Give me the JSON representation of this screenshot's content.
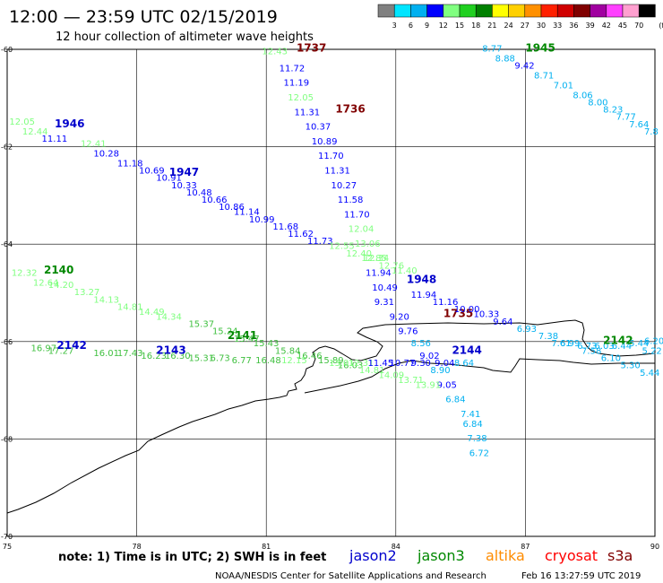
{
  "header": {
    "title": "12:00 — 23:59 UTC 02/15/2019",
    "subtitle": "12 hour collection of altimeter wave heights"
  },
  "colorbar": {
    "labels": [
      "3",
      "6",
      "9",
      "12",
      "15",
      "18",
      "21",
      "24",
      "27",
      "30",
      "33",
      "36",
      "39",
      "42",
      "45",
      "70"
    ],
    "unit": "(ft)",
    "colors": [
      "#808080",
      "#00e5ff",
      "#00b0f0",
      "#0000ff",
      "#80ff80",
      "#20d020",
      "#008000",
      "#ffff00",
      "#ffd000",
      "#ff9000",
      "#ff2000",
      "#d00000",
      "#800000",
      "#a000a0",
      "#ff40ff",
      "#ffa0d0",
      "#000000"
    ]
  },
  "map": {
    "lat_range": [
      -70,
      -60
    ],
    "lon_range": [
      75,
      90
    ],
    "lat_ticks": [
      "-60",
      "-62",
      "-64",
      "-66",
      "-68",
      "-70"
    ],
    "lon_ticks": [
      "75",
      "78",
      "81",
      "84",
      "87",
      "90"
    ]
  },
  "satellite_colors": {
    "jason2": "#0000cc",
    "jason3": "#008800",
    "altika": "#ff8c00",
    "cryosat": "#ff0000",
    "s3a": "#800000",
    "swh_blue": "#0000ff",
    "swh_cyan": "#00b0f0",
    "swh_green": "#40c040",
    "swh_lightgreen": "#80ff80"
  },
  "tracks": [
    {
      "time": "1737",
      "time_lon": 81.7,
      "time_lat": -60.05,
      "time_color": "s3a",
      "obs": [
        {
          "lon": 80.9,
          "lat": -60.1,
          "v": "12.43",
          "c": "swh_lightgreen"
        },
        {
          "lon": 81.3,
          "lat": -60.45,
          "v": "11.72",
          "c": "swh_blue"
        },
        {
          "lon": 81.4,
          "lat": -60.75,
          "v": "11.19",
          "c": "swh_blue"
        },
        {
          "lon": 81.5,
          "lat": -61.05,
          "v": "12.05",
          "c": "swh_lightgreen"
        },
        {
          "lon": 81.65,
          "lat": -61.35,
          "v": "11.31",
          "c": "swh_blue"
        },
        {
          "lon": 81.9,
          "lat": -61.65,
          "v": "10.37",
          "c": "swh_blue"
        },
        {
          "lon": 82.05,
          "lat": -61.95,
          "v": "10.89",
          "c": "swh_blue"
        },
        {
          "lon": 82.2,
          "lat": -62.25,
          "v": "11.70",
          "c": "swh_blue"
        },
        {
          "lon": 82.35,
          "lat": -62.55,
          "v": "11.31",
          "c": "swh_blue"
        },
        {
          "lon": 82.5,
          "lat": -62.85,
          "v": "10.27",
          "c": "swh_blue"
        },
        {
          "lon": 82.65,
          "lat": -63.15,
          "v": "11.58",
          "c": "swh_blue"
        },
        {
          "lon": 82.8,
          "lat": -63.45,
          "v": "11.70",
          "c": "swh_blue"
        },
        {
          "lon": 82.9,
          "lat": -63.75,
          "v": "12.04",
          "c": "swh_lightgreen"
        },
        {
          "lon": 83.05,
          "lat": -64.05,
          "v": "13.06",
          "c": "swh_lightgreen"
        },
        {
          "lon": 83.2,
          "lat": -64.35,
          "v": "12.85",
          "c": "swh_lightgreen"
        },
        {
          "lon": 83.3,
          "lat": -64.65,
          "v": "11.94",
          "c": "swh_blue"
        },
        {
          "lon": 83.45,
          "lat": -64.95,
          "v": "10.49",
          "c": "swh_blue"
        }
      ]
    },
    {
      "time": "1736",
      "time_lon": 82.6,
      "time_lat": -61.3,
      "time_color": "s3a",
      "obs": []
    },
    {
      "time": "1735",
      "time_lon": 85.1,
      "time_lat": -65.5,
      "time_color": "s3a",
      "obs": [
        {
          "lon": 83.5,
          "lat": -65.25,
          "v": "9.31",
          "c": "swh_blue"
        },
        {
          "lon": 83.85,
          "lat": -65.55,
          "v": "9.20",
          "c": "swh_blue"
        },
        {
          "lon": 84.05,
          "lat": -65.85,
          "v": "9.76",
          "c": "swh_blue"
        },
        {
          "lon": 84.35,
          "lat": -66.1,
          "v": "8.56",
          "c": "swh_cyan"
        },
        {
          "lon": 84.55,
          "lat": -66.35,
          "v": "9.02",
          "c": "swh_blue"
        },
        {
          "lon": 84.8,
          "lat": -66.65,
          "v": "8.90",
          "c": "swh_cyan"
        },
        {
          "lon": 84.95,
          "lat": -66.95,
          "v": "9.05",
          "c": "swh_blue"
        },
        {
          "lon": 85.15,
          "lat": -67.25,
          "v": "6.84",
          "c": "swh_cyan"
        },
        {
          "lon": 85.5,
          "lat": -67.55,
          "v": "7.41",
          "c": "swh_cyan"
        },
        {
          "lon": 85.55,
          "lat": -67.75,
          "v": "6.84",
          "c": "swh_cyan"
        },
        {
          "lon": 85.65,
          "lat": -68.05,
          "v": "7.38",
          "c": "swh_cyan"
        },
        {
          "lon": 85.7,
          "lat": -68.35,
          "v": "6.72",
          "c": "swh_cyan"
        }
      ]
    },
    {
      "time": "1945",
      "time_lon": 87.0,
      "time_lat": -60.05,
      "time_color": "jason3",
      "obs": [
        {
          "lon": 86.0,
          "lat": -60.05,
          "v": "8.77",
          "c": "swh_cyan"
        },
        {
          "lon": 86.3,
          "lat": -60.25,
          "v": "8.88",
          "c": "swh_cyan"
        },
        {
          "lon": 86.75,
          "lat": -60.4,
          "v": "9.42",
          "c": "swh_blue"
        },
        {
          "lon": 87.2,
          "lat": -60.6,
          "v": "8.71",
          "c": "swh_cyan"
        },
        {
          "lon": 87.65,
          "lat": -60.8,
          "v": "7.01",
          "c": "swh_cyan"
        },
        {
          "lon": 88.1,
          "lat": -61.0,
          "v": "8.06",
          "c": "swh_cyan"
        },
        {
          "lon": 88.45,
          "lat": -61.15,
          "v": "8.00",
          "c": "swh_cyan"
        },
        {
          "lon": 88.8,
          "lat": -61.3,
          "v": "8.23",
          "c": "swh_cyan"
        },
        {
          "lon": 89.1,
          "lat": -61.45,
          "v": "7.77",
          "c": "swh_cyan"
        },
        {
          "lon": 89.4,
          "lat": -61.6,
          "v": "7.64",
          "c": "swh_cyan"
        },
        {
          "lon": 89.75,
          "lat": -61.75,
          "v": "7.8",
          "c": "swh_cyan"
        }
      ]
    },
    {
      "time": "1946",
      "time_lon": 76.1,
      "time_lat": -61.6,
      "time_color": "jason2",
      "obs": [
        {
          "lon": 75.05,
          "lat": -61.55,
          "v": "12.05",
          "c": "swh_lightgreen"
        },
        {
          "lon": 75.35,
          "lat": -61.75,
          "v": "12.44",
          "c": "swh_lightgreen"
        },
        {
          "lon": 75.8,
          "lat": -61.9,
          "v": "11.11",
          "c": "swh_blue"
        },
        {
          "lon": 76.7,
          "lat": -62.0,
          "v": "12.41",
          "c": "swh_lightgreen"
        },
        {
          "lon": 77.0,
          "lat": -62.2,
          "v": "10.28",
          "c": "swh_blue"
        },
        {
          "lon": 77.55,
          "lat": -62.4,
          "v": "11.18",
          "c": "swh_blue"
        },
        {
          "lon": 78.05,
          "lat": -62.55,
          "v": "10.69",
          "c": "swh_blue"
        },
        {
          "lon": 78.45,
          "lat": -62.7,
          "v": "10.91",
          "c": "swh_blue"
        },
        {
          "lon": 78.8,
          "lat": -62.85,
          "v": "10.33",
          "c": "swh_blue"
        },
        {
          "lon": 79.15,
          "lat": -63.0,
          "v": "10.48",
          "c": "swh_blue"
        },
        {
          "lon": 79.5,
          "lat": -63.15,
          "v": "10.66",
          "c": "swh_blue"
        },
        {
          "lon": 79.9,
          "lat": -63.3,
          "v": "10.86",
          "c": "swh_blue"
        },
        {
          "lon": 80.25,
          "lat": -63.4,
          "v": "11.14",
          "c": "swh_blue"
        },
        {
          "lon": 80.6,
          "lat": -63.55,
          "v": "10.99",
          "c": "swh_blue"
        },
        {
          "lon": 81.15,
          "lat": -63.7,
          "v": "11.68",
          "c": "swh_blue"
        },
        {
          "lon": 81.5,
          "lat": -63.85,
          "v": "11.62",
          "c": "swh_blue"
        },
        {
          "lon": 81.95,
          "lat": -64.0,
          "v": "11.73",
          "c": "swh_blue"
        },
        {
          "lon": 82.45,
          "lat": -64.1,
          "v": "12.55",
          "c": "swh_lightgreen"
        },
        {
          "lon": 82.85,
          "lat": -64.25,
          "v": "12.40",
          "c": "swh_lightgreen"
        },
        {
          "lon": 83.25,
          "lat": -64.35,
          "v": "12.34",
          "c": "swh_lightgreen"
        },
        {
          "lon": 83.6,
          "lat": -64.5,
          "v": "12.76",
          "c": "swh_lightgreen"
        },
        {
          "lon": 83.9,
          "lat": -64.6,
          "v": "11.40",
          "c": "swh_lightgreen"
        }
      ]
    },
    {
      "time": "1947",
      "time_lon": 78.75,
      "time_lat": -62.6,
      "time_color": "jason2",
      "obs": []
    },
    {
      "time": "1948",
      "time_lon": 84.25,
      "time_lat": -64.8,
      "time_color": "jason2",
      "obs": [
        {
          "lon": 84.35,
          "lat": -65.1,
          "v": "11.94",
          "c": "swh_blue"
        },
        {
          "lon": 84.85,
          "lat": -65.25,
          "v": "11.16",
          "c": "swh_blue"
        },
        {
          "lon": 85.35,
          "lat": -65.4,
          "v": "10.00",
          "c": "swh_blue"
        },
        {
          "lon": 85.8,
          "lat": -65.5,
          "v": "10.33",
          "c": "swh_blue"
        },
        {
          "lon": 86.25,
          "lat": -65.65,
          "v": "9.64",
          "c": "swh_blue"
        },
        {
          "lon": 86.8,
          "lat": -65.8,
          "v": "6.93",
          "c": "swh_cyan"
        },
        {
          "lon": 87.3,
          "lat": -65.95,
          "v": "7.38",
          "c": "swh_cyan"
        },
        {
          "lon": 87.8,
          "lat": -66.1,
          "v": "6.99",
          "c": "swh_cyan"
        },
        {
          "lon": 88.3,
          "lat": -66.25,
          "v": "7.58",
          "c": "swh_cyan"
        },
        {
          "lon": 88.75,
          "lat": -66.4,
          "v": "6.10",
          "c": "swh_cyan"
        },
        {
          "lon": 89.2,
          "lat": -66.55,
          "v": "5.30",
          "c": "swh_cyan"
        },
        {
          "lon": 89.65,
          "lat": -66.7,
          "v": "5.44",
          "c": "swh_cyan"
        }
      ]
    },
    {
      "time": "2140",
      "time_lon": 75.85,
      "time_lat": -64.6,
      "time_color": "jason3",
      "obs": [
        {
          "lon": 75.1,
          "lat": -64.65,
          "v": "12.32",
          "c": "swh_lightgreen"
        },
        {
          "lon": 75.6,
          "lat": -64.85,
          "v": "12.64",
          "c": "swh_lightgreen"
        },
        {
          "lon": 75.95,
          "lat": -64.9,
          "v": "14.20",
          "c": "swh_lightgreen"
        },
        {
          "lon": 76.55,
          "lat": -65.05,
          "v": "13.27",
          "c": "swh_lightgreen"
        },
        {
          "lon": 77.0,
          "lat": -65.2,
          "v": "14.13",
          "c": "swh_lightgreen"
        },
        {
          "lon": 77.55,
          "lat": -65.35,
          "v": "14.81",
          "c": "swh_lightgreen"
        },
        {
          "lon": 78.05,
          "lat": -65.45,
          "v": "14.49",
          "c": "swh_lightgreen"
        },
        {
          "lon": 78.45,
          "lat": -65.55,
          "v": "14.34",
          "c": "swh_lightgreen"
        },
        {
          "lon": 79.2,
          "lat": -65.7,
          "v": "15.37",
          "c": "swh_green"
        },
        {
          "lon": 79.75,
          "lat": -65.85,
          "v": "15.24",
          "c": "swh_green"
        },
        {
          "lon": 80.25,
          "lat": -66.0,
          "v": "15.47",
          "c": "swh_green"
        },
        {
          "lon": 80.7,
          "lat": -66.1,
          "v": "15.43",
          "c": "swh_green"
        },
        {
          "lon": 81.2,
          "lat": -66.25,
          "v": "15.84",
          "c": "swh_green"
        },
        {
          "lon": 81.7,
          "lat": -66.35,
          "v": "16.46",
          "c": "swh_green"
        },
        {
          "lon": 82.2,
          "lat": -66.45,
          "v": "15.89",
          "c": "swh_green"
        },
        {
          "lon": 82.65,
          "lat": -66.55,
          "v": "16.03",
          "c": "swh_green"
        },
        {
          "lon": 83.15,
          "lat": -66.65,
          "v": "14.81",
          "c": "swh_lightgreen"
        },
        {
          "lon": 83.6,
          "lat": -66.75,
          "v": "14.09",
          "c": "swh_lightgreen"
        },
        {
          "lon": 84.05,
          "lat": -66.85,
          "v": "13.71",
          "c": "swh_lightgreen"
        },
        {
          "lon": 84.45,
          "lat": -66.95,
          "v": "13.91",
          "c": "swh_lightgreen"
        }
      ]
    },
    {
      "time": "2141",
      "time_lon": 80.1,
      "time_lat": -65.95,
      "time_color": "jason3",
      "obs": []
    },
    {
      "time": "2142",
      "time_lon": 76.15,
      "time_lat": -66.15,
      "time_color": "jason2",
      "obs": [
        {
          "lon": 75.55,
          "lat": -66.2,
          "v": "16.97",
          "c": "swh_green"
        },
        {
          "lon": 75.95,
          "lat": -66.25,
          "v": "17.27",
          "c": "swh_green"
        },
        {
          "lon": 77.0,
          "lat": -66.3,
          "v": "16.01",
          "c": "swh_green"
        },
        {
          "lon": 77.55,
          "lat": -66.3,
          "v": "17.43",
          "c": "swh_green"
        },
        {
          "lon": 78.1,
          "lat": -66.35,
          "v": "16.23",
          "c": "swh_green"
        },
        {
          "lon": 78.65,
          "lat": -66.35,
          "v": "16.30",
          "c": "swh_green"
        },
        {
          "lon": 79.2,
          "lat": -66.4,
          "v": "15.31",
          "c": "swh_green"
        },
        {
          "lon": 79.7,
          "lat": -66.4,
          "v": "6.73",
          "c": "swh_green"
        },
        {
          "lon": 80.2,
          "lat": -66.45,
          "v": "6.77",
          "c": "swh_green"
        },
        {
          "lon": 80.75,
          "lat": -66.45,
          "v": "16.48",
          "c": "swh_green"
        },
        {
          "lon": 81.35,
          "lat": -66.45,
          "v": "12.15",
          "c": "swh_lightgreen"
        },
        {
          "lon": 82.45,
          "lat": -66.5,
          "v": "13.01",
          "c": "swh_lightgreen"
        },
        {
          "lon": 82.9,
          "lat": -66.5,
          "v": "12.31",
          "c": "swh_lightgreen"
        },
        {
          "lon": 83.35,
          "lat": -66.5,
          "v": "11.45",
          "c": "swh_blue"
        },
        {
          "lon": 83.85,
          "lat": -66.5,
          "v": "10.77",
          "c": "swh_blue"
        },
        {
          "lon": 84.35,
          "lat": -66.5,
          "v": "9.30",
          "c": "swh_blue"
        },
        {
          "lon": 84.9,
          "lat": -66.5,
          "v": "9.04",
          "c": "swh_blue"
        },
        {
          "lon": 85.35,
          "lat": -66.5,
          "v": "8.64",
          "c": "swh_cyan"
        }
      ]
    },
    {
      "time": "2143",
      "time_lon": 78.45,
      "time_lat": -66.25,
      "time_color": "jason2",
      "obs": []
    },
    {
      "time": "2144",
      "time_lon": 85.3,
      "time_lat": -66.25,
      "time_color": "jason2",
      "obs": []
    },
    {
      "time": "2142",
      "time_lon": 88.8,
      "time_lat": -66.05,
      "time_color": "jason3",
      "obs": [
        {
          "lon": 87.6,
          "lat": -66.1,
          "v": "7.61",
          "c": "swh_cyan"
        },
        {
          "lon": 88.2,
          "lat": -66.15,
          "v": "6.73",
          "c": "swh_cyan"
        },
        {
          "lon": 88.6,
          "lat": -66.15,
          "v": "6.03",
          "c": "swh_cyan"
        },
        {
          "lon": 89.0,
          "lat": -66.15,
          "v": "6.44",
          "c": "swh_cyan"
        },
        {
          "lon": 89.4,
          "lat": -66.1,
          "v": "5.44",
          "c": "swh_cyan"
        },
        {
          "lon": 89.75,
          "lat": -66.05,
          "v": "6.20",
          "c": "swh_cyan"
        },
        {
          "lon": 89.7,
          "lat": -66.25,
          "v": "5.22",
          "c": "swh_cyan"
        }
      ]
    }
  ],
  "footer": {
    "note": "note: 1) Time is in UTC; 2) SWH is in feet",
    "satellites": [
      "jason2",
      "jason3",
      "altika",
      "cryosat",
      "s3a"
    ],
    "credit": "NOAA/NESDIS Center for Satellite Applications and Research",
    "timestamp": "Feb 16 13:27:59 UTC 2019"
  }
}
